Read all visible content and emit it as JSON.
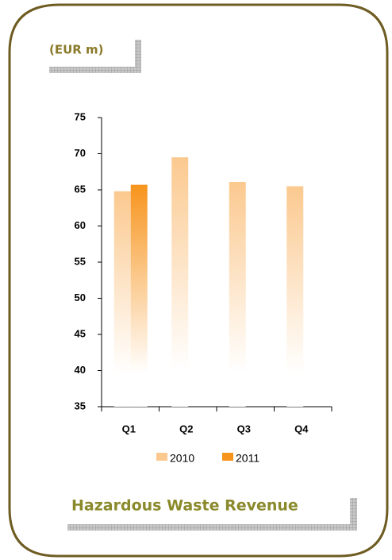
{
  "chart_data": {
    "type": "bar",
    "title": "Hazardous Waste Revenue",
    "subtitle": "(EUR m)",
    "categories": [
      "Q1",
      "Q2",
      "Q3",
      "Q4"
    ],
    "series": [
      {
        "name": "2010",
        "color": "#fbc98f",
        "values": [
          64.8,
          69.5,
          66.1,
          65.5
        ]
      },
      {
        "name": "2011",
        "color": "#f7941d",
        "values": [
          65.7,
          null,
          null,
          null
        ]
      }
    ],
    "ylim": [
      35,
      75
    ],
    "yticks": [
      35,
      40,
      45,
      50,
      55,
      60,
      65,
      70,
      75
    ],
    "grid": false
  }
}
